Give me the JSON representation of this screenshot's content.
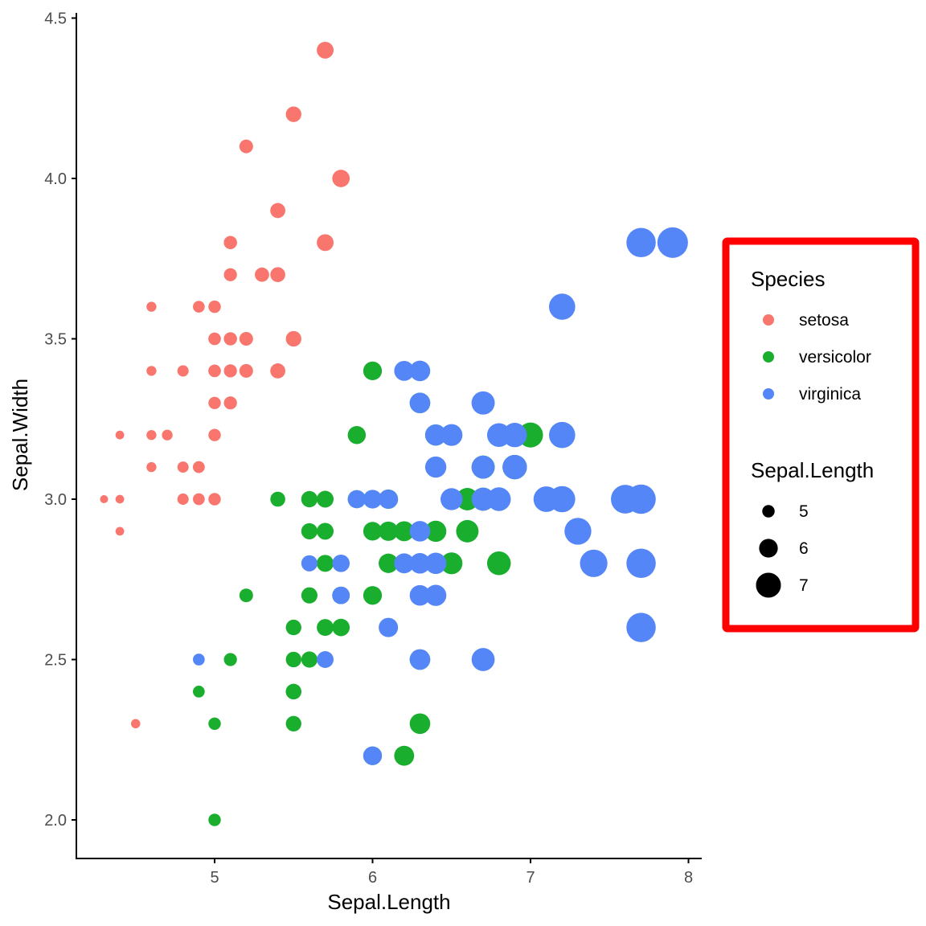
{
  "colors": {
    "setosa": "#F8766D",
    "versicolor": "#1AAE2E",
    "virginica": "#5486F7",
    "highlight_box": "#FF0000",
    "axis": "#000000"
  },
  "chart_data": {
    "type": "scatter",
    "xlabel": "Sepal.Length",
    "ylabel": "Sepal.Width",
    "xlim": [
      4.2,
      8.1
    ],
    "ylim": [
      1.88,
      4.52
    ],
    "x_ticks": [
      5,
      6,
      7,
      8
    ],
    "x_tick_labels": [
      "5",
      "6",
      "7",
      "8"
    ],
    "y_ticks": [
      2.0,
      2.5,
      3.0,
      3.5,
      4.0,
      4.5
    ],
    "y_tick_labels": [
      "2.0",
      "2.5",
      "3.0",
      "3.5",
      "4.0",
      "4.5"
    ],
    "grid": false,
    "legend_position": "right",
    "color_legend": {
      "title": "Species",
      "entries": [
        "setosa",
        "versicolor",
        "virginica"
      ]
    },
    "size_legend": {
      "title": "Sepal.Length",
      "entries": [
        5,
        6,
        7
      ]
    },
    "series": [
      {
        "name": "setosa",
        "points": [
          [
            5.1,
            3.5
          ],
          [
            4.9,
            3.0
          ],
          [
            4.7,
            3.2
          ],
          [
            4.6,
            3.1
          ],
          [
            5.0,
            3.6
          ],
          [
            5.4,
            3.9
          ],
          [
            4.6,
            3.4
          ],
          [
            5.0,
            3.4
          ],
          [
            4.4,
            2.9
          ],
          [
            4.9,
            3.1
          ],
          [
            5.4,
            3.7
          ],
          [
            4.8,
            3.4
          ],
          [
            4.8,
            3.0
          ],
          [
            4.3,
            3.0
          ],
          [
            5.8,
            4.0
          ],
          [
            5.7,
            4.4
          ],
          [
            5.4,
            3.9
          ],
          [
            5.1,
            3.5
          ],
          [
            5.7,
            3.8
          ],
          [
            5.1,
            3.8
          ],
          [
            5.4,
            3.4
          ],
          [
            5.1,
            3.7
          ],
          [
            4.6,
            3.6
          ],
          [
            5.1,
            3.3
          ],
          [
            4.8,
            3.4
          ],
          [
            5.0,
            3.0
          ],
          [
            5.0,
            3.4
          ],
          [
            5.2,
            3.5
          ],
          [
            5.2,
            3.4
          ],
          [
            4.7,
            3.2
          ],
          [
            4.8,
            3.1
          ],
          [
            5.4,
            3.4
          ],
          [
            5.2,
            4.1
          ],
          [
            5.5,
            4.2
          ],
          [
            4.9,
            3.1
          ],
          [
            5.0,
            3.2
          ],
          [
            5.5,
            3.5
          ],
          [
            4.9,
            3.6
          ],
          [
            4.4,
            3.0
          ],
          [
            5.1,
            3.4
          ],
          [
            5.0,
            3.5
          ],
          [
            4.5,
            2.3
          ],
          [
            4.4,
            3.2
          ],
          [
            5.0,
            3.5
          ],
          [
            5.1,
            3.8
          ],
          [
            4.8,
            3.0
          ],
          [
            5.1,
            3.8
          ],
          [
            4.6,
            3.2
          ],
          [
            5.3,
            3.7
          ],
          [
            5.0,
            3.3
          ]
        ]
      },
      {
        "name": "versicolor",
        "points": [
          [
            7.0,
            3.2
          ],
          [
            6.4,
            3.2
          ],
          [
            6.9,
            3.1
          ],
          [
            5.5,
            2.3
          ],
          [
            6.5,
            2.8
          ],
          [
            5.7,
            2.8
          ],
          [
            6.3,
            3.3
          ],
          [
            4.9,
            2.4
          ],
          [
            6.6,
            2.9
          ],
          [
            5.2,
            2.7
          ],
          [
            5.0,
            2.0
          ],
          [
            5.9,
            3.0
          ],
          [
            6.0,
            2.2
          ],
          [
            6.1,
            2.9
          ],
          [
            5.6,
            2.9
          ],
          [
            6.7,
            3.1
          ],
          [
            5.6,
            3.0
          ],
          [
            5.8,
            2.7
          ],
          [
            6.2,
            2.2
          ],
          [
            5.6,
            2.5
          ],
          [
            5.9,
            3.2
          ],
          [
            6.1,
            2.8
          ],
          [
            6.3,
            2.5
          ],
          [
            6.1,
            2.8
          ],
          [
            6.4,
            2.9
          ],
          [
            6.6,
            3.0
          ],
          [
            6.8,
            2.8
          ],
          [
            6.7,
            3.0
          ],
          [
            6.0,
            2.9
          ],
          [
            5.7,
            2.6
          ],
          [
            5.5,
            2.4
          ],
          [
            5.5,
            2.4
          ],
          [
            5.8,
            2.7
          ],
          [
            6.0,
            2.7
          ],
          [
            5.4,
            3.0
          ],
          [
            6.0,
            3.4
          ],
          [
            6.7,
            3.1
          ],
          [
            6.3,
            2.3
          ],
          [
            5.6,
            3.0
          ],
          [
            5.5,
            2.5
          ],
          [
            5.5,
            2.6
          ],
          [
            6.1,
            3.0
          ],
          [
            5.8,
            2.6
          ],
          [
            5.0,
            2.3
          ],
          [
            5.6,
            2.7
          ],
          [
            5.7,
            3.0
          ],
          [
            5.7,
            2.9
          ],
          [
            6.2,
            2.9
          ],
          [
            5.1,
            2.5
          ],
          [
            5.7,
            2.8
          ]
        ]
      },
      {
        "name": "virginica",
        "points": [
          [
            6.3,
            3.3
          ],
          [
            5.8,
            2.7
          ],
          [
            7.1,
            3.0
          ],
          [
            6.3,
            2.9
          ],
          [
            6.5,
            3.0
          ],
          [
            7.6,
            3.0
          ],
          [
            4.9,
            2.5
          ],
          [
            7.3,
            2.9
          ],
          [
            6.7,
            2.5
          ],
          [
            7.2,
            3.6
          ],
          [
            6.5,
            3.2
          ],
          [
            6.4,
            2.7
          ],
          [
            6.8,
            3.0
          ],
          [
            5.7,
            2.5
          ],
          [
            5.8,
            2.8
          ],
          [
            6.4,
            3.2
          ],
          [
            6.5,
            3.0
          ],
          [
            7.7,
            3.8
          ],
          [
            7.7,
            2.6
          ],
          [
            6.0,
            2.2
          ],
          [
            6.9,
            3.2
          ],
          [
            5.6,
            2.8
          ],
          [
            7.7,
            2.8
          ],
          [
            6.3,
            2.7
          ],
          [
            6.7,
            3.3
          ],
          [
            7.2,
            3.2
          ],
          [
            6.2,
            2.8
          ],
          [
            6.1,
            3.0
          ],
          [
            6.4,
            2.8
          ],
          [
            7.2,
            3.0
          ],
          [
            7.4,
            2.8
          ],
          [
            7.9,
            3.8
          ],
          [
            6.4,
            2.8
          ],
          [
            6.3,
            2.8
          ],
          [
            6.1,
            2.6
          ],
          [
            7.7,
            3.0
          ],
          [
            6.3,
            3.4
          ],
          [
            6.4,
            3.1
          ],
          [
            6.0,
            3.0
          ],
          [
            6.9,
            3.1
          ],
          [
            6.7,
            3.1
          ],
          [
            6.9,
            3.1
          ],
          [
            5.8,
            2.7
          ],
          [
            6.8,
            3.2
          ],
          [
            6.7,
            3.3
          ],
          [
            6.7,
            3.0
          ],
          [
            6.3,
            2.5
          ],
          [
            6.5,
            3.0
          ],
          [
            6.2,
            3.4
          ],
          [
            5.9,
            3.0
          ]
        ]
      }
    ]
  }
}
